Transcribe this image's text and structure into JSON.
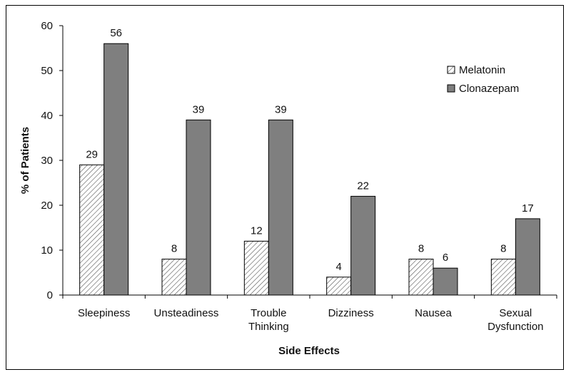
{
  "chart_data": {
    "type": "bar",
    "title": "",
    "xlabel": "Side Effects",
    "ylabel": "% of Patients",
    "ylim": [
      0,
      60
    ],
    "yticks": [
      0,
      10,
      20,
      30,
      40,
      50,
      60
    ],
    "categories": [
      [
        "Sleepiness"
      ],
      [
        "Unsteadiness"
      ],
      [
        "Trouble",
        "Thinking"
      ],
      [
        "Dizziness"
      ],
      [
        "Nausea"
      ],
      [
        "Sexual",
        "Dysfunction"
      ]
    ],
    "series": [
      {
        "name": "Melatonin",
        "values": [
          29,
          8,
          12,
          4,
          8,
          8
        ],
        "fill": "hatch",
        "color": "#ffffff"
      },
      {
        "name": "Clonazepam",
        "values": [
          56,
          39,
          39,
          22,
          6,
          17
        ],
        "fill": "solid",
        "color": "#7f7f7f"
      }
    ],
    "legend_position": "top-right",
    "grid": false
  }
}
